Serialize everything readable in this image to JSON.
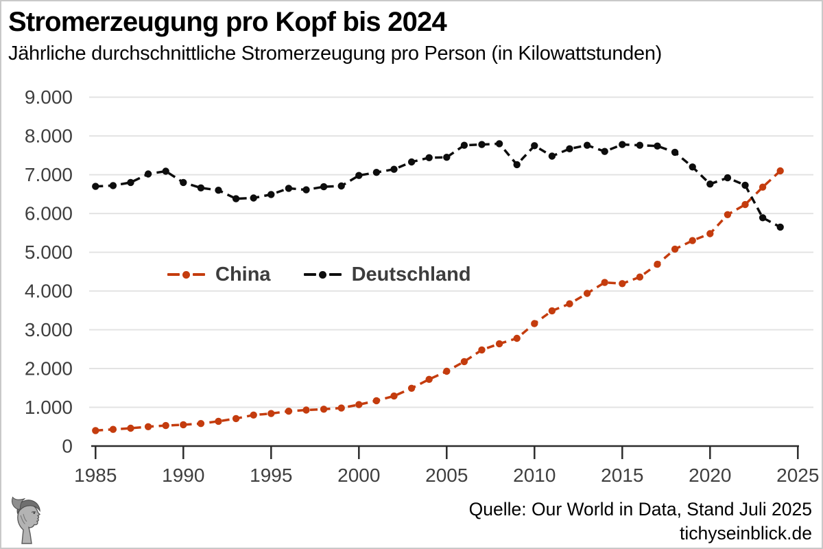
{
  "header": {
    "title": "Stromerzeugung pro Kopf bis 2024",
    "subtitle": "Jährliche durchschnittliche Stromerzeugung pro Person (in Kilowattstunden)"
  },
  "footer": {
    "source_line1": "Quelle: Our World in Data, Stand Juli 2025",
    "source_line2": "tichyseinblick.de",
    "logo": "classical-head-engraving-logo"
  },
  "colors": {
    "china_line": "#c43c0e",
    "deutschland_line": "#0d0d0d",
    "gridline": "#e3e3e3",
    "axis": "#2b2b2b",
    "tick_label": "#3f3f3f",
    "legend_text": "#3d3d3d",
    "page_border": "#c9c9c9"
  },
  "chart_data": {
    "type": "line",
    "title": "Stromerzeugung pro Kopf bis 2024",
    "subtitle": "Jährliche durchschnittliche Stromerzeugung pro Person (in Kilowattstunden)",
    "xlabel": "",
    "ylabel": "",
    "ylim": [
      0,
      9000
    ],
    "xlim": [
      1985,
      2025
    ],
    "grid": "horizontal",
    "line_style": "dashed-with-dot-markers",
    "legend_position": "inside-center-left",
    "y_ticks": [
      0,
      1000,
      2000,
      3000,
      4000,
      5000,
      6000,
      7000,
      8000,
      9000
    ],
    "y_tick_labels": [
      "0",
      "1.000",
      "2.000",
      "3.000",
      "4.000",
      "5.000",
      "6.000",
      "7.000",
      "8.000",
      "9.000"
    ],
    "x_ticks": [
      1985,
      1990,
      1995,
      2000,
      2005,
      2010,
      2015,
      2020,
      2025
    ],
    "x": [
      1985,
      1986,
      1987,
      1988,
      1989,
      1990,
      1991,
      1992,
      1993,
      1994,
      1995,
      1996,
      1997,
      1998,
      1999,
      2000,
      2001,
      2002,
      2003,
      2004,
      2005,
      2006,
      2007,
      2008,
      2009,
      2010,
      2011,
      2012,
      2013,
      2014,
      2015,
      2016,
      2017,
      2018,
      2019,
      2020,
      2021,
      2022,
      2023,
      2024
    ],
    "series": [
      {
        "name": "China",
        "color": "#c43c0e",
        "values": [
          400,
          430,
          460,
          500,
          530,
          550,
          580,
          640,
          710,
          800,
          840,
          900,
          930,
          950,
          980,
          1070,
          1170,
          1290,
          1490,
          1720,
          1930,
          2180,
          2480,
          2640,
          2780,
          3160,
          3490,
          3670,
          3940,
          4220,
          4190,
          4360,
          4690,
          5080,
          5300,
          5480,
          5970,
          6230,
          6680,
          7100
        ]
      },
      {
        "name": "Deutschland",
        "color": "#0d0d0d",
        "values": [
          6700,
          6720,
          6800,
          7020,
          7090,
          6800,
          6660,
          6600,
          6380,
          6400,
          6490,
          6650,
          6610,
          6690,
          6710,
          6980,
          7060,
          7140,
          7330,
          7440,
          7450,
          7760,
          7780,
          7800,
          7260,
          7750,
          7480,
          7670,
          7760,
          7600,
          7780,
          7760,
          7740,
          7580,
          7200,
          6760,
          6920,
          6730,
          5890,
          5650
        ]
      }
    ]
  }
}
